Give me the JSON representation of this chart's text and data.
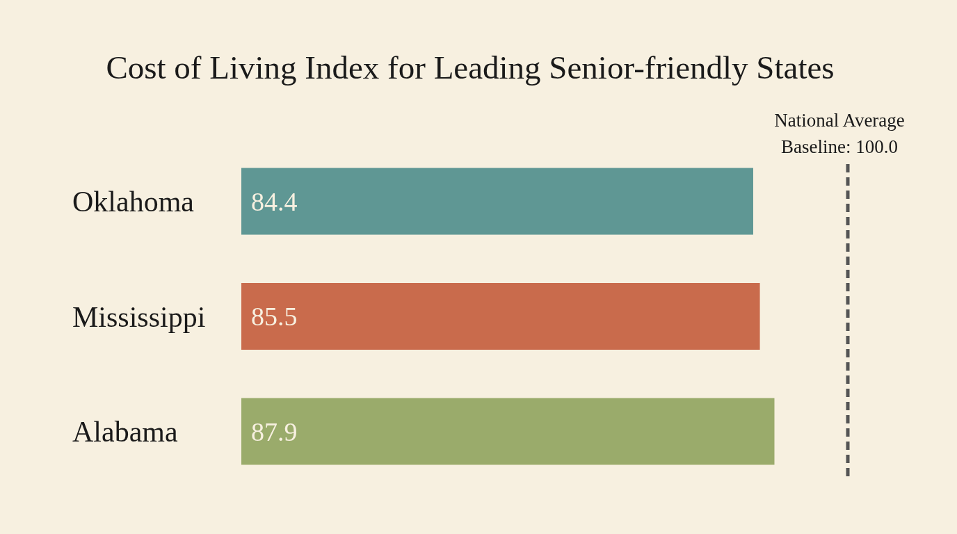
{
  "chart_data": {
    "type": "bar",
    "orientation": "horizontal",
    "title": "Cost of Living Index for Leading Senior-friendly States",
    "categories": [
      "Oklahoma",
      "Mississippi",
      "Alabama"
    ],
    "values": [
      84.4,
      85.5,
      87.9
    ],
    "colors": [
      "#5f9794",
      "#c96b4c",
      "#9aab6b"
    ],
    "tick_labels": "y",
    "data_labels": true,
    "ref_lines": [
      {
        "axis": "x",
        "value": 100,
        "label": "National Average\nBaseline: 100.0",
        "color": "#555555",
        "line_style": "dashed"
      }
    ]
  }
}
